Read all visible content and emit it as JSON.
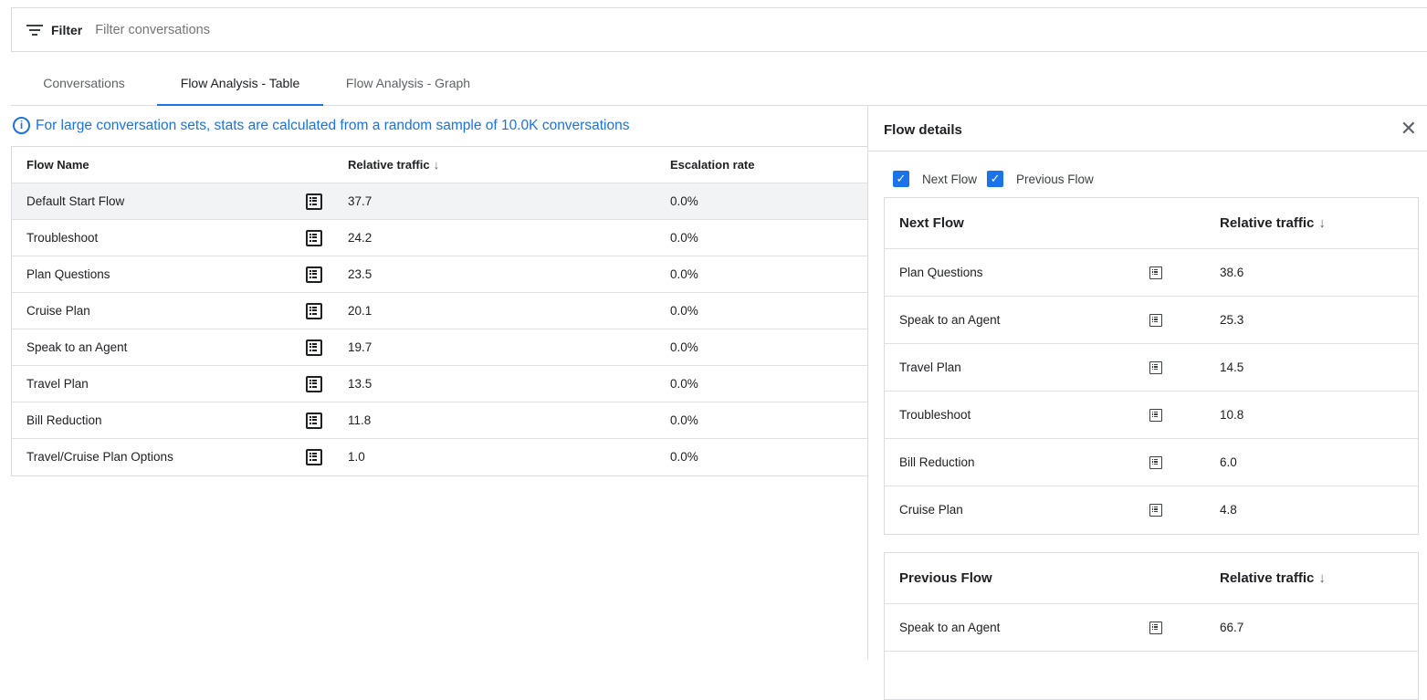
{
  "filter": {
    "label": "Filter",
    "placeholder": "Filter conversations"
  },
  "tabs": [
    {
      "label": "Conversations"
    },
    {
      "label": "Flow Analysis - Table",
      "active": true
    },
    {
      "label": "Flow Analysis - Graph"
    }
  ],
  "info": "For large conversation sets, stats are calculated from a random sample of 10.0K conversations",
  "table": {
    "headers": {
      "name": "Flow Name",
      "traffic": "Relative traffic",
      "escalation": "Escalation rate"
    },
    "sort_icon": "arrow-down",
    "rows": [
      {
        "name": "Default Start Flow",
        "traffic": "37.7",
        "escalation": "0.0%"
      },
      {
        "name": "Troubleshoot",
        "traffic": "24.2",
        "escalation": "0.0%"
      },
      {
        "name": "Plan Questions",
        "traffic": "23.5",
        "escalation": "0.0%"
      },
      {
        "name": "Cruise Plan",
        "traffic": "20.1",
        "escalation": "0.0%"
      },
      {
        "name": "Speak to an Agent",
        "traffic": "19.7",
        "escalation": "0.0%"
      },
      {
        "name": "Travel Plan",
        "traffic": "13.5",
        "escalation": "0.0%"
      },
      {
        "name": "Bill Reduction",
        "traffic": "11.8",
        "escalation": "0.0%"
      },
      {
        "name": "Travel/Cruise Plan Options",
        "traffic": "1.0",
        "escalation": "0.0%"
      }
    ]
  },
  "panel": {
    "title": "Flow details",
    "checks": [
      {
        "label": "Next Flow",
        "checked": true
      },
      {
        "label": "Previous Flow",
        "checked": true
      }
    ],
    "next": {
      "header": "Next Flow",
      "traffic_header": "Relative traffic",
      "rows": [
        {
          "name": "Plan Questions",
          "traffic": "38.6"
        },
        {
          "name": "Speak to an Agent",
          "traffic": "25.3"
        },
        {
          "name": "Travel Plan",
          "traffic": "14.5"
        },
        {
          "name": "Troubleshoot",
          "traffic": "10.8"
        },
        {
          "name": "Bill Reduction",
          "traffic": "6.0"
        },
        {
          "name": "Cruise Plan",
          "traffic": "4.8"
        }
      ]
    },
    "previous": {
      "header": "Previous Flow",
      "traffic_header": "Relative traffic",
      "rows": [
        {
          "name": "Speak to an Agent",
          "traffic": "66.7"
        }
      ]
    }
  },
  "colors": {
    "accent": "#1a73e8",
    "selected_row": "#f1f3f4"
  }
}
